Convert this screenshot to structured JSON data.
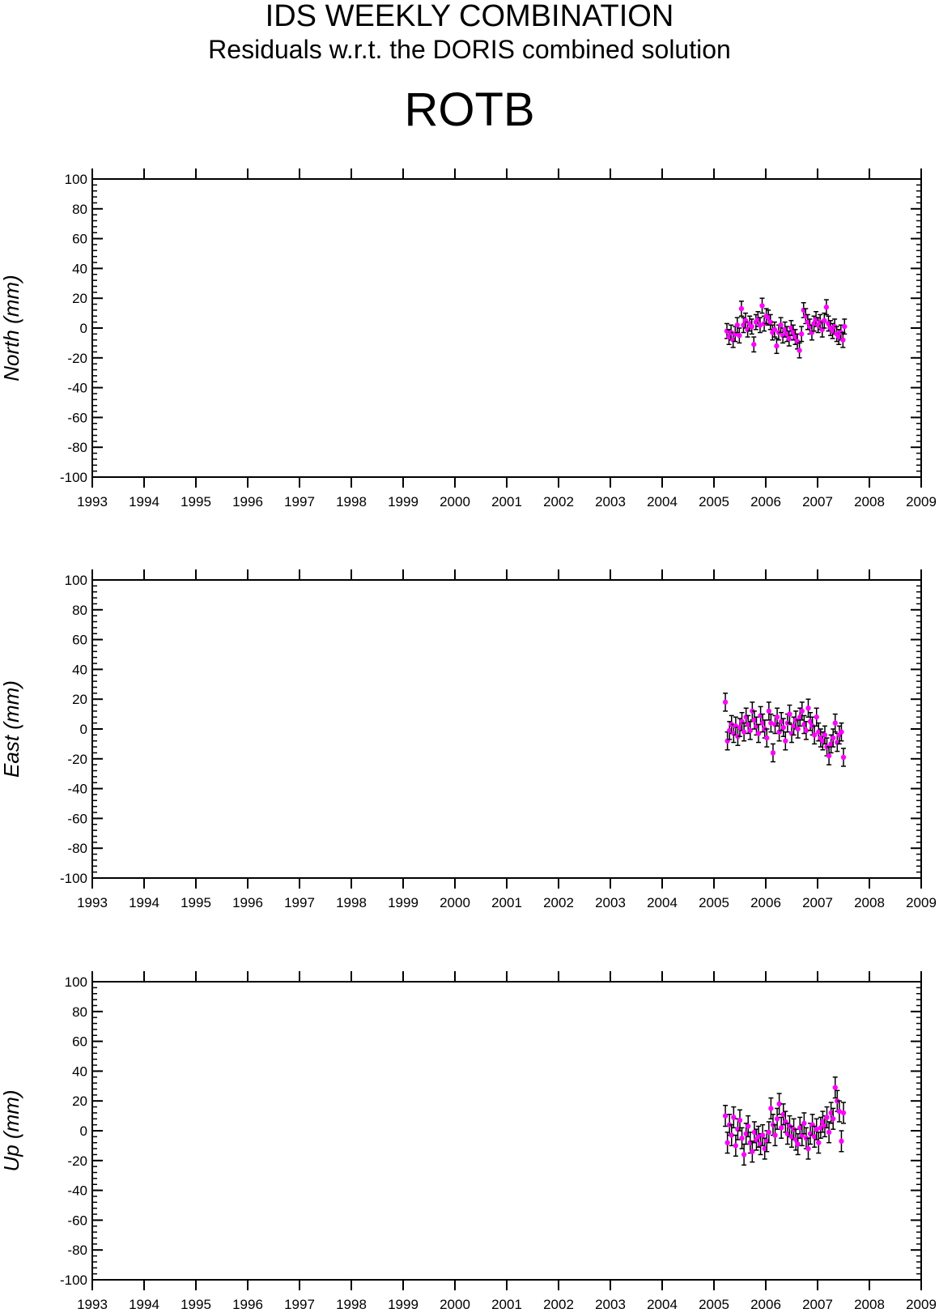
{
  "header": {
    "title": "IDS WEEKLY COMBINATION",
    "subtitle": "Residuals w.r.t. the DORIS combined solution",
    "station": "ROTB"
  },
  "colors": {
    "point": "#ff00ff",
    "errorbar": "#000000",
    "axis": "#000000"
  },
  "chart_data": [
    {
      "type": "scatter",
      "ylabel": "North (mm)",
      "xlim": [
        1993,
        2009
      ],
      "ylim": [
        -100,
        100
      ],
      "x_ticks": [
        "1993",
        "1994",
        "1995",
        "1996",
        "1997",
        "1998",
        "1999",
        "2000",
        "2001",
        "2002",
        "2003",
        "2004",
        "2005",
        "2006",
        "2007",
        "2008",
        "2009"
      ],
      "y_ticks": [
        "100",
        "80",
        "60",
        "40",
        "20",
        "0",
        "-20",
        "-40",
        "-60",
        "-80",
        "-100"
      ],
      "grid": false,
      "error_bar_mm": 5,
      "points": [
        [
          2005.25,
          -2
        ],
        [
          2005.29,
          -6
        ],
        [
          2005.33,
          -3
        ],
        [
          2005.37,
          -8
        ],
        [
          2005.41,
          -4
        ],
        [
          2005.45,
          2
        ],
        [
          2005.49,
          -5
        ],
        [
          2005.53,
          13
        ],
        [
          2005.57,
          2
        ],
        [
          2005.61,
          5
        ],
        [
          2005.65,
          -1
        ],
        [
          2005.69,
          3
        ],
        [
          2005.73,
          1
        ],
        [
          2005.77,
          -11
        ],
        [
          2005.81,
          4
        ],
        [
          2005.85,
          6
        ],
        [
          2005.89,
          2
        ],
        [
          2005.93,
          15
        ],
        [
          2005.97,
          3
        ],
        [
          2006.01,
          8
        ],
        [
          2006.05,
          7
        ],
        [
          2006.09,
          4
        ],
        [
          2006.13,
          -3
        ],
        [
          2006.17,
          -1
        ],
        [
          2006.21,
          -12
        ],
        [
          2006.25,
          -3
        ],
        [
          2006.29,
          2
        ],
        [
          2006.33,
          -5
        ],
        [
          2006.37,
          -1
        ],
        [
          2006.41,
          -4
        ],
        [
          2006.45,
          -7
        ],
        [
          2006.49,
          0
        ],
        [
          2006.53,
          -3
        ],
        [
          2006.57,
          -6
        ],
        [
          2006.61,
          -9
        ],
        [
          2006.65,
          -15
        ],
        [
          2006.69,
          -4
        ],
        [
          2006.73,
          12
        ],
        [
          2006.77,
          8
        ],
        [
          2006.81,
          4
        ],
        [
          2006.85,
          1
        ],
        [
          2006.89,
          -3
        ],
        [
          2006.93,
          3
        ],
        [
          2006.97,
          6
        ],
        [
          2007.01,
          2
        ],
        [
          2007.05,
          4
        ],
        [
          2007.09,
          -1
        ],
        [
          2007.13,
          5
        ],
        [
          2007.17,
          14
        ],
        [
          2007.21,
          3
        ],
        [
          2007.25,
          0
        ],
        [
          2007.29,
          -2
        ],
        [
          2007.33,
          1
        ],
        [
          2007.37,
          -4
        ],
        [
          2007.41,
          -6
        ],
        [
          2007.45,
          -3
        ],
        [
          2007.49,
          -8
        ],
        [
          2007.52,
          1
        ]
      ]
    },
    {
      "type": "scatter",
      "ylabel": "East (mm)",
      "xlim": [
        1993,
        2009
      ],
      "ylim": [
        -100,
        100
      ],
      "x_ticks": [
        "1993",
        "1994",
        "1995",
        "1996",
        "1997",
        "1998",
        "1999",
        "2000",
        "2001",
        "2002",
        "2003",
        "2004",
        "2005",
        "2006",
        "2007",
        "2008",
        "2009"
      ],
      "y_ticks": [
        "100",
        "80",
        "60",
        "40",
        "20",
        "0",
        "-20",
        "-40",
        "-60",
        "-80",
        "-100"
      ],
      "grid": false,
      "error_bar_mm": 6,
      "points": [
        [
          2005.22,
          18
        ],
        [
          2005.26,
          -8
        ],
        [
          2005.3,
          -1
        ],
        [
          2005.34,
          3
        ],
        [
          2005.38,
          -3
        ],
        [
          2005.42,
          2
        ],
        [
          2005.46,
          -5
        ],
        [
          2005.5,
          1
        ],
        [
          2005.54,
          5
        ],
        [
          2005.58,
          -2
        ],
        [
          2005.62,
          8
        ],
        [
          2005.66,
          3
        ],
        [
          2005.7,
          -1
        ],
        [
          2005.74,
          12
        ],
        [
          2005.78,
          6
        ],
        [
          2005.82,
          2
        ],
        [
          2005.86,
          -3
        ],
        [
          2005.9,
          9
        ],
        [
          2005.94,
          4
        ],
        [
          2005.98,
          0
        ],
        [
          2006.02,
          -6
        ],
        [
          2006.06,
          12
        ],
        [
          2006.1,
          4
        ],
        [
          2006.14,
          -16
        ],
        [
          2006.18,
          3
        ],
        [
          2006.22,
          8
        ],
        [
          2006.26,
          -2
        ],
        [
          2006.3,
          5
        ],
        [
          2006.34,
          1
        ],
        [
          2006.38,
          -8
        ],
        [
          2006.42,
          4
        ],
        [
          2006.46,
          10
        ],
        [
          2006.5,
          -3
        ],
        [
          2006.54,
          2
        ],
        [
          2006.58,
          6
        ],
        [
          2006.62,
          0
        ],
        [
          2006.66,
          8
        ],
        [
          2006.7,
          12
        ],
        [
          2006.74,
          3
        ],
        [
          2006.78,
          -1
        ],
        [
          2006.82,
          14
        ],
        [
          2006.86,
          5
        ],
        [
          2006.9,
          2
        ],
        [
          2006.94,
          -4
        ],
        [
          2006.98,
          8
        ],
        [
          2007.02,
          -2
        ],
        [
          2007.06,
          -6
        ],
        [
          2007.1,
          -8
        ],
        [
          2007.14,
          -4
        ],
        [
          2007.18,
          -12
        ],
        [
          2007.22,
          -18
        ],
        [
          2007.26,
          -10
        ],
        [
          2007.3,
          -6
        ],
        [
          2007.34,
          4
        ],
        [
          2007.38,
          -9
        ],
        [
          2007.42,
          -4
        ],
        [
          2007.46,
          -2
        ],
        [
          2007.5,
          -19
        ]
      ]
    },
    {
      "type": "scatter",
      "ylabel": "Up (mm)",
      "xlim": [
        1993,
        2009
      ],
      "ylim": [
        -100,
        100
      ],
      "x_ticks": [
        "1993",
        "1994",
        "1995",
        "1996",
        "1997",
        "1998",
        "1999",
        "2000",
        "2001",
        "2002",
        "2003",
        "2004",
        "2005",
        "2006",
        "2007",
        "2008",
        "2009"
      ],
      "y_ticks": [
        "100",
        "80",
        "60",
        "40",
        "20",
        "0",
        "-20",
        "-40",
        "-60",
        "-80",
        "-100"
      ],
      "grid": false,
      "error_bar_mm": 7,
      "points": [
        [
          2005.22,
          10
        ],
        [
          2005.26,
          -8
        ],
        [
          2005.3,
          4
        ],
        [
          2005.34,
          -3
        ],
        [
          2005.38,
          9
        ],
        [
          2005.42,
          -10
        ],
        [
          2005.46,
          1
        ],
        [
          2005.5,
          7
        ],
        [
          2005.54,
          -5
        ],
        [
          2005.58,
          -16
        ],
        [
          2005.62,
          -2
        ],
        [
          2005.66,
          3
        ],
        [
          2005.7,
          -8
        ],
        [
          2005.74,
          -14
        ],
        [
          2005.78,
          -1
        ],
        [
          2005.82,
          -6
        ],
        [
          2005.86,
          -4
        ],
        [
          2005.9,
          -9
        ],
        [
          2005.94,
          -3
        ],
        [
          2005.98,
          -12
        ],
        [
          2006.02,
          -7
        ],
        [
          2006.06,
          -1
        ],
        [
          2006.1,
          15
        ],
        [
          2006.14,
          4
        ],
        [
          2006.18,
          -3
        ],
        [
          2006.22,
          8
        ],
        [
          2006.26,
          18
        ],
        [
          2006.3,
          2
        ],
        [
          2006.34,
          11
        ],
        [
          2006.38,
          6
        ],
        [
          2006.42,
          -2
        ],
        [
          2006.46,
          3
        ],
        [
          2006.5,
          -4
        ],
        [
          2006.54,
          1
        ],
        [
          2006.58,
          -6
        ],
        [
          2006.62,
          -9
        ],
        [
          2006.66,
          2
        ],
        [
          2006.7,
          -3
        ],
        [
          2006.74,
          5
        ],
        [
          2006.78,
          -5
        ],
        [
          2006.82,
          -12
        ],
        [
          2006.86,
          -2
        ],
        [
          2006.9,
          4
        ],
        [
          2006.94,
          -4
        ],
        [
          2006.98,
          1
        ],
        [
          2007.02,
          -8
        ],
        [
          2007.06,
          2
        ],
        [
          2007.1,
          6
        ],
        [
          2007.14,
          3
        ],
        [
          2007.18,
          9
        ],
        [
          2007.22,
          -1
        ],
        [
          2007.26,
          12
        ],
        [
          2007.3,
          8
        ],
        [
          2007.34,
          29
        ],
        [
          2007.38,
          20
        ],
        [
          2007.42,
          13
        ],
        [
          2007.46,
          -7
        ],
        [
          2007.5,
          12
        ]
      ]
    }
  ]
}
